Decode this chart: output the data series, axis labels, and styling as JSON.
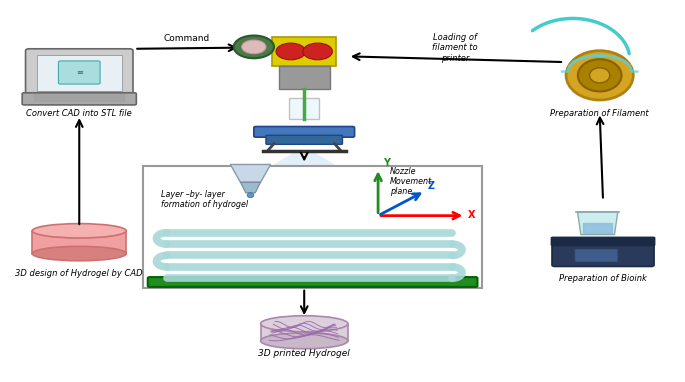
{
  "background_color": "#ffffff",
  "figsize": [
    6.85,
    3.82
  ],
  "dpi": 100,
  "labels": {
    "laptop": "Convert CAD into STL file",
    "command": "Command",
    "loading": "Loading of\nfilament to\nprinter",
    "filament": "Preparation of Filament",
    "bioink": "Preparation of Bioink",
    "cad3d": "3D design of Hydrogel by CAD",
    "layer": "Layer –by- layer\nformation of hydrogel",
    "nozzle": "Nozzle\nMovement\nplane",
    "printed": "3D printed Hydrogel",
    "x_axis": "X",
    "y_axis": "Y",
    "z_axis": "Z"
  },
  "colors": {
    "arrow": "#000000",
    "x_axis": "#ff0000",
    "y_axis": "#228B22",
    "z_axis": "#0055cc",
    "box_border": "#999999",
    "box_fill": "#ffffff",
    "platform": "#228B22",
    "layer_color": "#a8d8d8",
    "light_cone": "#d0e4f4",
    "nozzle_body": "#c0ccd8",
    "nozzle_tip": "#88aacc"
  }
}
